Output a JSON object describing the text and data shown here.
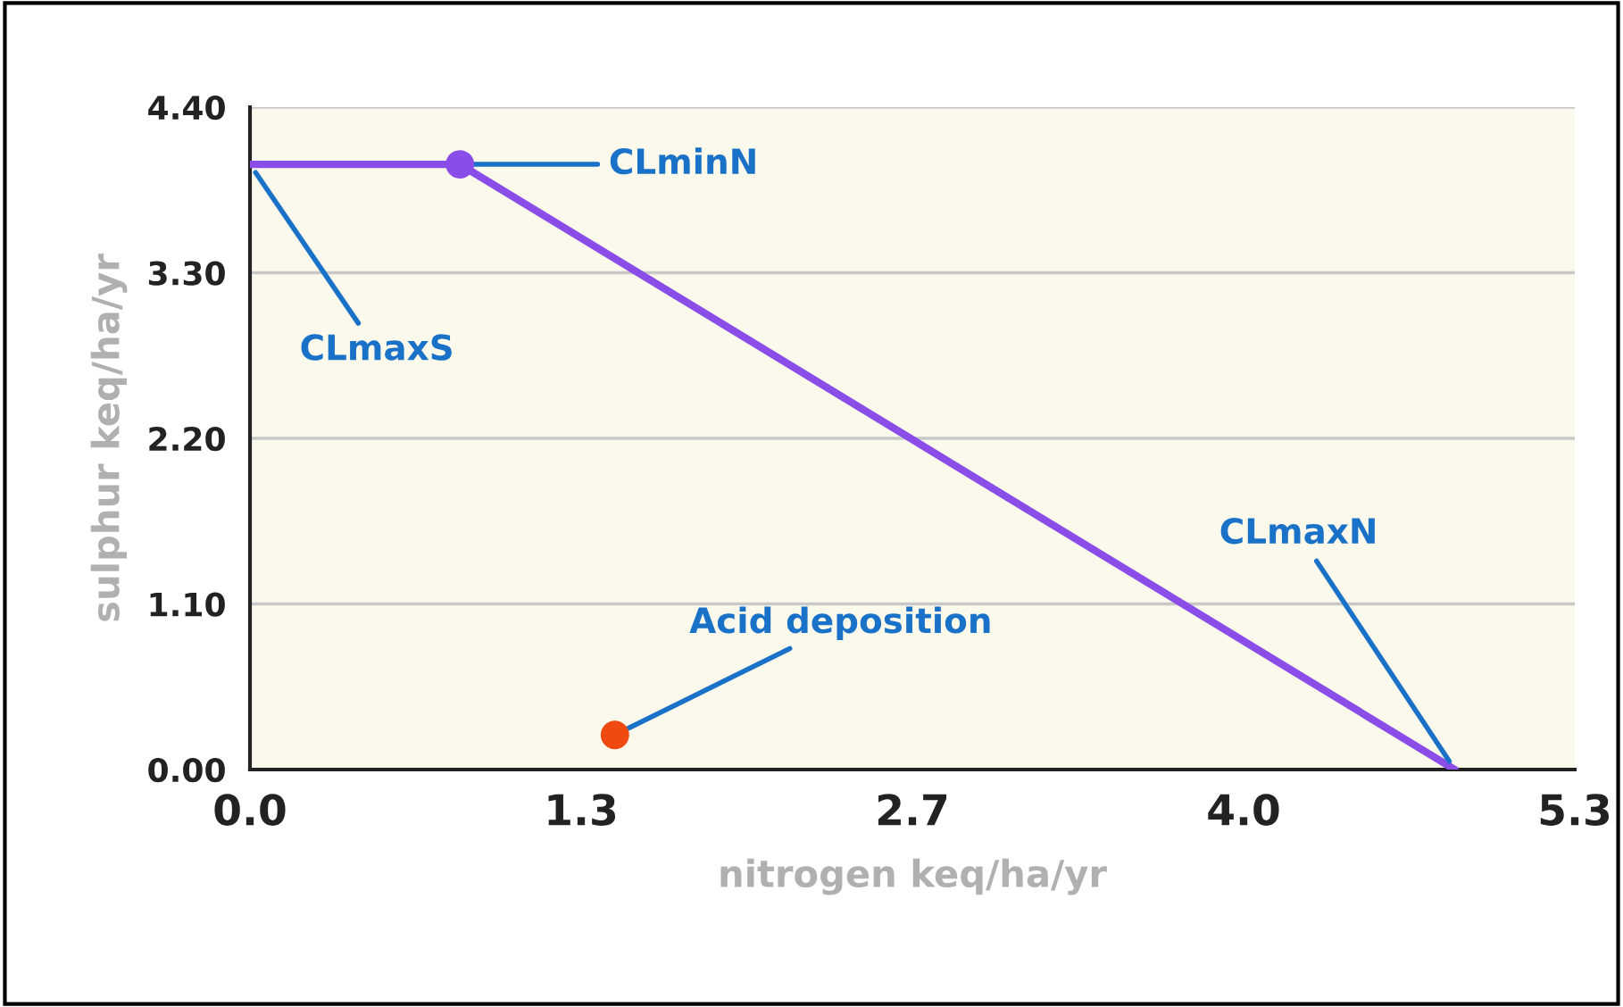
{
  "chart_data": {
    "type": "line",
    "xlabel": "nitrogen keq/ha/yr",
    "ylabel": "sulphur keq/ha/yr",
    "series": [
      {
        "color": "#8a4de8",
        "x": [
          0,
          0.84,
          4.82
        ],
        "values": [
          4.02,
          4.02,
          0
        ],
        "marker": "none"
      },
      {
        "type": "scatter",
        "color": "#8a4de8",
        "x": [
          0.84
        ],
        "values": [
          4.02
        ],
        "marker": "circle"
      },
      {
        "type": "scatter",
        "color": "#f04a10",
        "x": [
          1.46
        ],
        "values": [
          0.23
        ],
        "marker": "circle"
      }
    ],
    "xlim": [
      0,
      5.3
    ],
    "ylim": [
      0,
      4.4
    ],
    "xticks": [
      {
        "value": 0,
        "label": "0.0"
      },
      {
        "value": 1.325,
        "label": "1.3"
      },
      {
        "value": 2.65,
        "label": "2.7"
      },
      {
        "value": 3.975,
        "label": "4.0"
      },
      {
        "value": 5.3,
        "label": "5.3"
      }
    ],
    "yticks": [
      {
        "value": 0,
        "label": "0.00"
      },
      {
        "value": 1.1,
        "label": "1.10"
      },
      {
        "value": 2.2,
        "label": "2.20"
      },
      {
        "value": 3.3,
        "label": "3.30"
      },
      {
        "value": 4.4,
        "label": "4.40"
      }
    ],
    "grid": "y",
    "legend": false,
    "annotations": [
      {
        "text": "CLmaxS",
        "x": 0,
        "y": 4.02
      },
      {
        "text": "CLminN",
        "x": 0.84,
        "y": 4.02
      },
      {
        "text": "CLmaxN",
        "x": 4.82,
        "y": 0
      },
      {
        "text": "Acid deposition",
        "x": 1.46,
        "y": 0.23
      }
    ]
  }
}
